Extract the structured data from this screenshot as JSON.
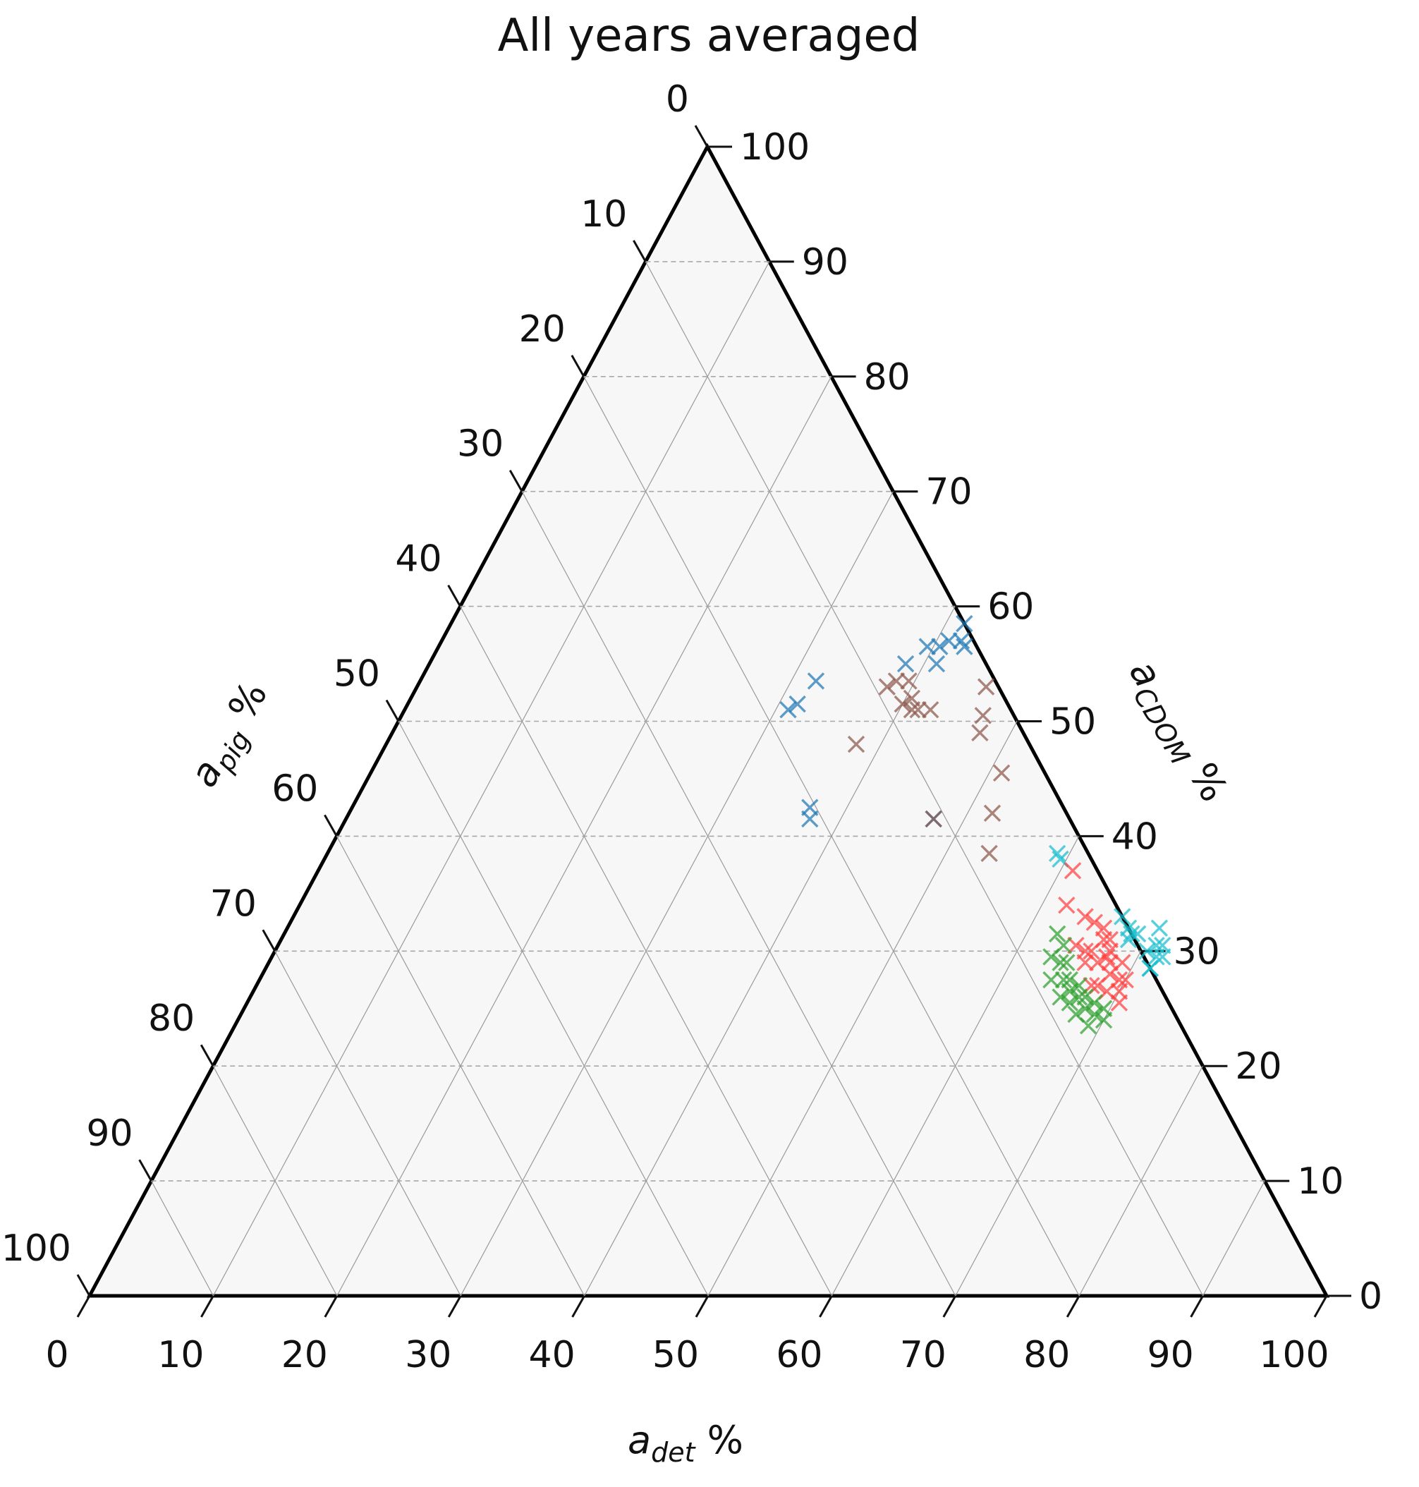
{
  "chart_data": {
    "type": "ternary-scatter",
    "title": "All years averaged",
    "axes": {
      "bottom": {
        "label": "a",
        "subscript": "det",
        "suffix": " %",
        "ticks": [
          "0",
          "10",
          "20",
          "30",
          "40",
          "50",
          "60",
          "70",
          "80",
          "90",
          "100"
        ]
      },
      "left": {
        "label": "a",
        "subscript": "pig",
        "suffix": " %",
        "ticks": [
          "0",
          "10",
          "20",
          "30",
          "40",
          "50",
          "60",
          "70",
          "80",
          "90",
          "100"
        ]
      },
      "right": {
        "label": "a",
        "subscript": "CDOM",
        "suffix": " %",
        "ticks": [
          "0",
          "10",
          "20",
          "30",
          "40",
          "50",
          "60",
          "70",
          "80",
          "90",
          "100"
        ]
      }
    },
    "grid": true,
    "marker": "x",
    "series": [
      {
        "color": "#1f77b4",
        "points": [
          {
            "det": 38.5,
            "pig": 6.5,
            "cdom": 55.0
          },
          {
            "det": 39.5,
            "pig": 4.0,
            "cdom": 56.5
          },
          {
            "det": 40.5,
            "pig": 3.0,
            "cdom": 56.5
          },
          {
            "det": 41.0,
            "pig": 2.0,
            "cdom": 57.0
          },
          {
            "det": 41.0,
            "pig": 4.0,
            "cdom": 55.0
          },
          {
            "det": 42.0,
            "pig": 1.0,
            "cdom": 57.0
          },
          {
            "det": 42.5,
            "pig": 1.0,
            "cdom": 56.5
          },
          {
            "det": 41.5,
            "pig": 0.0,
            "cdom": 58.5
          },
          {
            "det": 32.0,
            "pig": 14.5,
            "cdom": 53.5
          },
          {
            "det": 31.5,
            "pig": 17.0,
            "cdom": 51.5
          },
          {
            "det": 31.0,
            "pig": 18.0,
            "cdom": 51.0
          },
          {
            "det": 37.0,
            "pig": 20.5,
            "cdom": 42.5
          },
          {
            "det": 37.5,
            "pig": 21.0,
            "cdom": 41.5
          },
          {
            "det": 47.5,
            "pig": 11.0,
            "cdom": 41.5
          }
        ]
      },
      {
        "color": "#8c564b",
        "points": [
          {
            "det": 38.0,
            "pig": 9.0,
            "cdom": 53.0
          },
          {
            "det": 38.5,
            "pig": 8.0,
            "cdom": 53.5
          },
          {
            "det": 39.5,
            "pig": 7.0,
            "cdom": 53.5
          },
          {
            "det": 40.0,
            "pig": 8.5,
            "cdom": 51.5
          },
          {
            "det": 40.5,
            "pig": 7.5,
            "cdom": 52.0
          },
          {
            "det": 41.0,
            "pig": 8.0,
            "cdom": 51.0
          },
          {
            "det": 41.5,
            "pig": 7.5,
            "cdom": 51.0
          },
          {
            "det": 42.5,
            "pig": 6.5,
            "cdom": 51.0
          },
          {
            "det": 46.0,
            "pig": 1.0,
            "cdom": 53.0
          },
          {
            "det": 47.0,
            "pig": 2.5,
            "cdom": 50.5
          },
          {
            "det": 47.5,
            "pig": 3.5,
            "cdom": 49.0
          },
          {
            "det": 38.0,
            "pig": 14.0,
            "cdom": 48.0
          },
          {
            "det": 51.0,
            "pig": 3.5,
            "cdom": 45.5
          },
          {
            "det": 52.0,
            "pig": 6.0,
            "cdom": 42.0
          },
          {
            "det": 47.5,
            "pig": 11.0,
            "cdom": 41.5
          },
          {
            "det": 53.5,
            "pig": 8.0,
            "cdom": 38.5
          }
        ]
      },
      {
        "color": "#17becf",
        "points": [
          {
            "det": 59.0,
            "pig": 2.5,
            "cdom": 38.5
          },
          {
            "det": 59.5,
            "pig": 2.5,
            "cdom": 38.0
          },
          {
            "det": 67.0,
            "pig": 0.0,
            "cdom": 33.0
          },
          {
            "det": 68.0,
            "pig": 0.0,
            "cdom": 32.0
          },
          {
            "det": 69.0,
            "pig": -0.5,
            "cdom": 31.5
          },
          {
            "det": 68.5,
            "pig": 0.5,
            "cdom": 31.0
          },
          {
            "det": 70.5,
            "pig": -2.5,
            "cdom": 32.0
          },
          {
            "det": 71.0,
            "pig": -1.5,
            "cdom": 30.5
          },
          {
            "det": 70.5,
            "pig": -0.5,
            "cdom": 30.0
          },
          {
            "det": 71.5,
            "pig": -2.0,
            "cdom": 30.5
          },
          {
            "det": 71.5,
            "pig": -1.0,
            "cdom": 29.5
          },
          {
            "det": 72.0,
            "pig": -1.5,
            "cdom": 29.5
          },
          {
            "det": 71.5,
            "pig": 0.0,
            "cdom": 28.5
          },
          {
            "det": 71.5,
            "pig": 0.0,
            "cdom": 28.5
          },
          {
            "det": 68.5,
            "pig": 0.0,
            "cdom": 31.5
          }
        ]
      },
      {
        "color": "#ff4040",
        "points": [
          {
            "det": 61.0,
            "pig": 2.0,
            "cdom": 37.0
          },
          {
            "det": 62.0,
            "pig": 4.0,
            "cdom": 34.0
          },
          {
            "det": 64.0,
            "pig": 3.0,
            "cdom": 33.0
          },
          {
            "det": 65.0,
            "pig": 2.5,
            "cdom": 32.5
          },
          {
            "det": 66.0,
            "pig": 2.0,
            "cdom": 32.0
          },
          {
            "det": 66.5,
            "pig": 2.5,
            "cdom": 31.0
          },
          {
            "det": 67.0,
            "pig": 2.0,
            "cdom": 31.0
          },
          {
            "det": 67.5,
            "pig": 3.0,
            "cdom": 29.5
          },
          {
            "det": 67.5,
            "pig": 2.5,
            "cdom": 30.0
          },
          {
            "det": 68.0,
            "pig": 3.0,
            "cdom": 29.0
          },
          {
            "det": 67.0,
            "pig": 4.0,
            "cdom": 29.0
          },
          {
            "det": 66.0,
            "pig": 4.0,
            "cdom": 30.0
          },
          {
            "det": 65.5,
            "pig": 4.5,
            "cdom": 30.0
          },
          {
            "det": 68.5,
            "pig": 3.5,
            "cdom": 28.0
          },
          {
            "det": 69.5,
            "pig": 3.0,
            "cdom": 27.5
          },
          {
            "det": 70.0,
            "pig": 3.5,
            "cdom": 26.5
          },
          {
            "det": 69.0,
            "pig": 4.5,
            "cdom": 26.5
          },
          {
            "det": 70.5,
            "pig": 4.0,
            "cdom": 25.5
          },
          {
            "det": 68.0,
            "pig": 5.0,
            "cdom": 27.0
          },
          {
            "det": 67.5,
            "pig": 5.5,
            "cdom": 27.0
          },
          {
            "det": 66.0,
            "pig": 5.0,
            "cdom": 29.0
          },
          {
            "det": 64.5,
            "pig": 5.0,
            "cdom": 30.5
          },
          {
            "det": 69.0,
            "pig": 2.0,
            "cdom": 29.0
          },
          {
            "det": 70.0,
            "pig": 2.5,
            "cdom": 27.5
          }
        ]
      },
      {
        "color": "#2ca02c",
        "points": [
          {
            "det": 62.5,
            "pig": 6.0,
            "cdom": 31.5
          },
          {
            "det": 63.5,
            "pig": 6.0,
            "cdom": 30.5
          },
          {
            "det": 64.0,
            "pig": 7.0,
            "cdom": 29.0
          },
          {
            "det": 64.5,
            "pig": 6.5,
            "cdom": 29.0
          },
          {
            "det": 65.0,
            "pig": 7.5,
            "cdom": 27.5
          },
          {
            "det": 65.5,
            "pig": 7.0,
            "cdom": 27.5
          },
          {
            "det": 66.0,
            "pig": 7.5,
            "cdom": 26.5
          },
          {
            "det": 66.5,
            "pig": 6.5,
            "cdom": 27.0
          },
          {
            "det": 67.0,
            "pig": 7.0,
            "cdom": 26.0
          },
          {
            "det": 67.5,
            "pig": 6.5,
            "cdom": 26.0
          },
          {
            "det": 68.0,
            "pig": 7.0,
            "cdom": 25.0
          },
          {
            "det": 68.5,
            "pig": 6.0,
            "cdom": 25.5
          },
          {
            "det": 69.0,
            "pig": 6.5,
            "cdom": 24.5
          },
          {
            "det": 69.5,
            "pig": 5.5,
            "cdom": 25.0
          },
          {
            "det": 70.0,
            "pig": 6.0,
            "cdom": 24.0
          },
          {
            "det": 64.0,
            "pig": 8.5,
            "cdom": 27.5
          },
          {
            "det": 65.5,
            "pig": 8.5,
            "cdom": 26.0
          },
          {
            "det": 66.5,
            "pig": 8.0,
            "cdom": 25.5
          },
          {
            "det": 63.0,
            "pig": 7.5,
            "cdom": 29.5
          },
          {
            "det": 67.5,
            "pig": 8.0,
            "cdom": 24.5
          },
          {
            "det": 69.0,
            "pig": 7.5,
            "cdom": 23.5
          }
        ]
      }
    ]
  }
}
